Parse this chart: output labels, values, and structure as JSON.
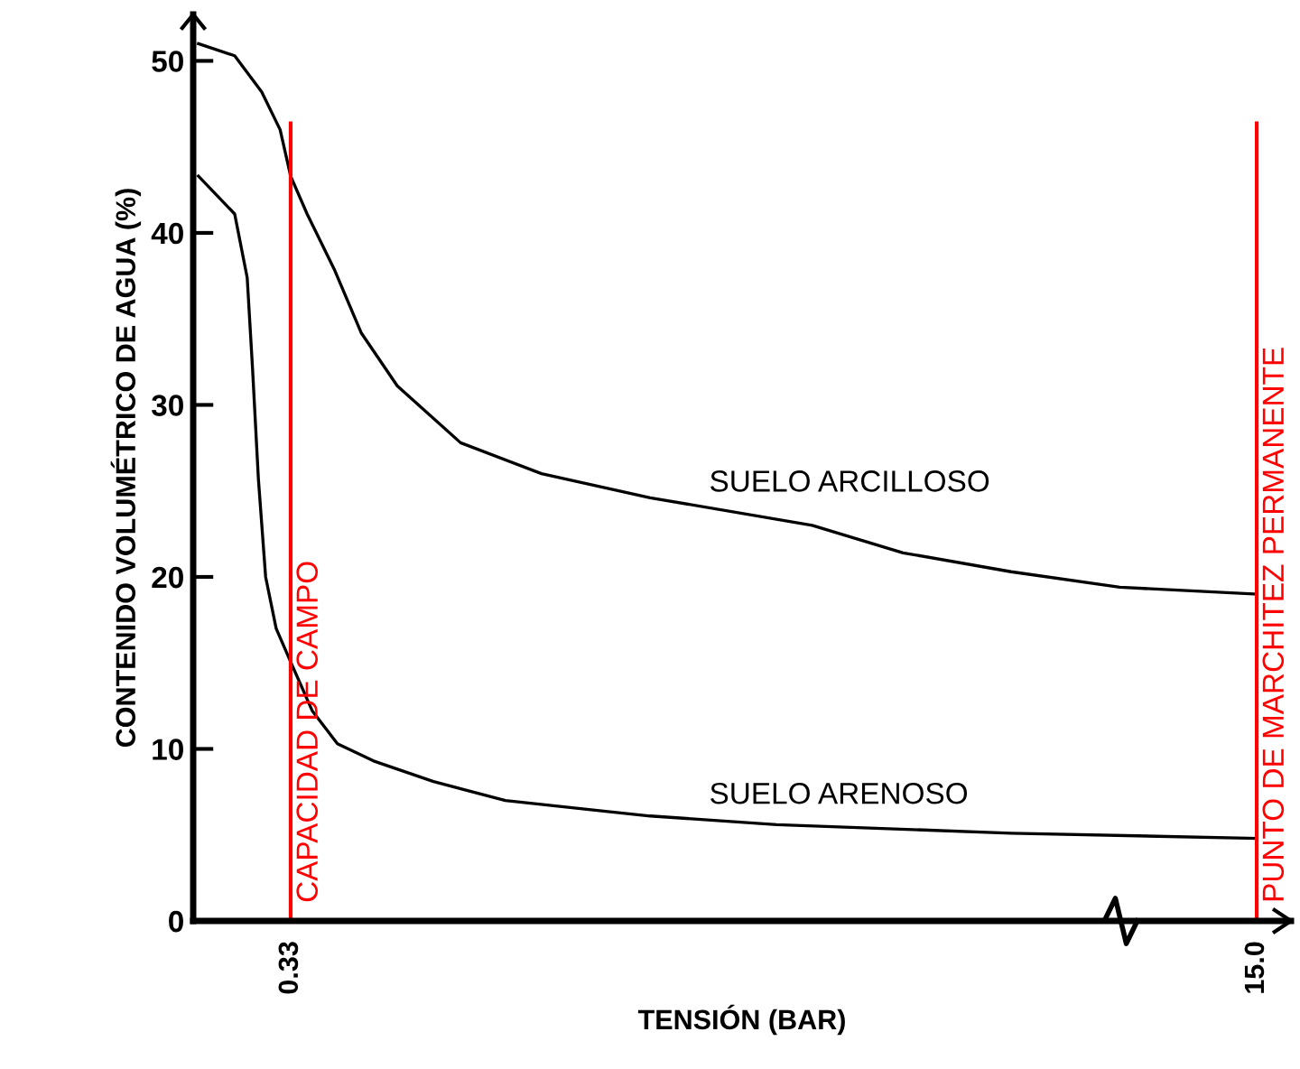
{
  "chart_data": {
    "type": "line",
    "xlabel": "TENSIÓN (BAR)",
    "ylabel": "CONTENIDO VOLUMÉTRICO DE AGUA (%)",
    "series": [
      {
        "name": "SUELO ARCILLOSO",
        "color": "#000000",
        "x": [
          -1.07,
          -0.52,
          -0.11,
          0.17,
          0.33,
          0.58,
          0.99,
          1.4,
          1.95,
          2.91,
          4.14,
          5.79,
          8.25,
          9.63,
          11.27,
          12.92,
          15.0
        ],
        "values": [
          51.0,
          50.3,
          48.2,
          46.0,
          43.3,
          41.1,
          37.9,
          34.2,
          31.1,
          27.8,
          26.0,
          24.6,
          23.0,
          21.4,
          20.3,
          19.4,
          19.0
        ]
      },
      {
        "name": "SUELO ARENOSO",
        "color": "#000000",
        "x": [
          -1.07,
          -0.52,
          -0.33,
          -0.25,
          -0.16,
          -0.05,
          0.11,
          0.36,
          0.66,
          1.04,
          1.59,
          2.5,
          3.59,
          5.05,
          5.79,
          7.71,
          11.27,
          15.0
        ],
        "values": [
          43.3,
          41.1,
          37.4,
          32.2,
          25.7,
          20.0,
          17.0,
          14.8,
          12.2,
          10.3,
          9.3,
          8.1,
          7.0,
          6.4,
          6.1,
          5.6,
          5.1,
          4.8
        ]
      }
    ],
    "xlim": [
      -1.15,
      15.52
    ],
    "ylim": [
      0,
      52.7
    ],
    "xticks": [
      {
        "value": 0.33,
        "label": "0.33"
      },
      {
        "value": 15.0,
        "label": "15.0"
      }
    ],
    "yticks": [
      {
        "value": 0,
        "label": "0"
      },
      10,
      20,
      30,
      40,
      50
    ],
    "ref_lines": [
      {
        "axis": "x",
        "value": 0.33,
        "label": "CAPACIDAD DE CAMPO",
        "color": "#ff0000",
        "line_style": "solid"
      },
      {
        "axis": "x",
        "value": 15.0,
        "label": "PUNTO DE MARCHITEZ PERMANENTE",
        "color": "#ff0000",
        "line_style": "solid"
      }
    ],
    "grid": false,
    "legend": false,
    "marker": "none",
    "line_style": "solid"
  }
}
